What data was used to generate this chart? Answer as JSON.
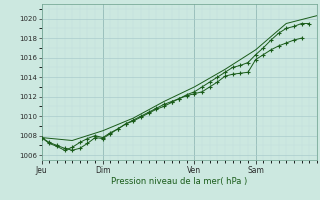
{
  "title": "Pression niveau de la mer( hPa )",
  "background_color": "#cce8e0",
  "plot_bg_color": "#cce8e0",
  "grid_major_color": "#aacccc",
  "grid_minor_color": "#c0dcdc",
  "line_color": "#1a5c1a",
  "ylim": [
    1005.5,
    1021.5
  ],
  "yticks": [
    1006,
    1008,
    1010,
    1012,
    1014,
    1016,
    1018,
    1020
  ],
  "day_labels": [
    "Jeu",
    "Dim",
    "Ven",
    "Sam"
  ],
  "day_positions": [
    0,
    48,
    120,
    168
  ],
  "xlim": [
    0,
    216
  ],
  "series1_x": [
    0,
    6,
    12,
    18,
    24,
    30,
    36,
    42,
    48,
    54,
    60,
    66,
    72,
    78,
    84,
    90,
    96,
    102,
    108,
    114,
    120,
    126,
    132,
    138,
    144,
    150,
    156,
    162,
    168,
    174,
    180,
    186,
    192,
    198,
    204
  ],
  "series1_y": [
    1007.8,
    1007.3,
    1007.0,
    1006.7,
    1006.5,
    1006.7,
    1007.2,
    1007.8,
    1007.7,
    1008.2,
    1008.7,
    1009.2,
    1009.6,
    1010.0,
    1010.4,
    1010.8,
    1011.2,
    1011.5,
    1011.8,
    1012.1,
    1012.3,
    1012.5,
    1013.0,
    1013.5,
    1014.1,
    1014.3,
    1014.4,
    1014.5,
    1015.8,
    1016.3,
    1016.8,
    1017.2,
    1017.5,
    1017.8,
    1018.0
  ],
  "series2_x": [
    0,
    6,
    12,
    18,
    24,
    30,
    36,
    42,
    48,
    54,
    60,
    66,
    72,
    78,
    84,
    90,
    96,
    102,
    108,
    114,
    120,
    126,
    132,
    138,
    144,
    150,
    156,
    162,
    168,
    174,
    180,
    186,
    192,
    198,
    204,
    210
  ],
  "series2_y": [
    1007.8,
    1007.2,
    1006.9,
    1006.5,
    1006.8,
    1007.3,
    1007.7,
    1008.0,
    1007.8,
    1008.3,
    1008.7,
    1009.2,
    1009.5,
    1009.9,
    1010.3,
    1010.7,
    1011.0,
    1011.4,
    1011.8,
    1012.2,
    1012.5,
    1013.0,
    1013.5,
    1014.0,
    1014.5,
    1015.0,
    1015.2,
    1015.5,
    1016.3,
    1017.0,
    1017.8,
    1018.5,
    1019.0,
    1019.2,
    1019.5,
    1019.5
  ],
  "series3_x": [
    0,
    24,
    48,
    72,
    96,
    120,
    144,
    168,
    192,
    216
  ],
  "series3_y": [
    1007.8,
    1007.5,
    1008.5,
    1009.8,
    1011.5,
    1013.0,
    1014.8,
    1016.8,
    1019.5,
    1020.3
  ]
}
